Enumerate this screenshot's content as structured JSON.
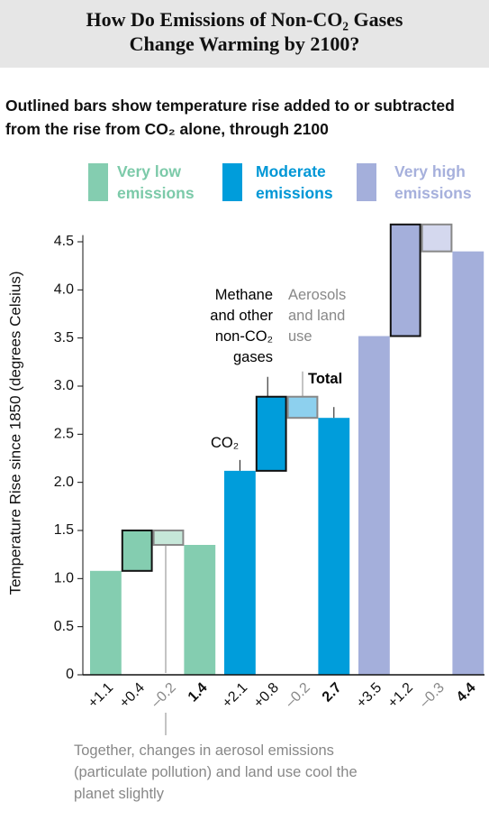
{
  "chart_data": {
    "type": "waterfall",
    "title": "How Do Emissions of Non-CO₂ Gases Change Warming by 2100?",
    "subtitle": "Outlined bars show temperature rise added to or subtracted from the rise from CO₂ alone, through 2100",
    "y_label": "Temperature Rise since 1850 (degrees Celsius)",
    "ylim": [
      0,
      4.7
    ],
    "yticks": [
      0,
      0.5,
      {
        "value": 1,
        "label": "1.0"
      },
      1.5,
      {
        "value": 2,
        "label": "2.0"
      },
      2.5,
      {
        "value": 3,
        "label": "3.0"
      },
      3.5,
      {
        "value": 4,
        "label": "4.0"
      },
      4.5
    ],
    "series": [
      {
        "name": "Very low emissions",
        "color": "#84cdb0",
        "light_color": "#c6e7d9",
        "text_color": "#7ccaa9",
        "values": [
          1.08,
          0.42,
          -0.15,
          1.35
        ],
        "value_labels": [
          "+1.1",
          "+0.4",
          "–0.2",
          "1.4"
        ]
      },
      {
        "name": "Moderate emissions",
        "color": "#009ddb",
        "light_color": "#8dd0ee",
        "text_color": "#0097d6",
        "values": [
          2.12,
          0.77,
          -0.22,
          2.67
        ],
        "value_labels": [
          "+2.1",
          "+0.8",
          "–0.2",
          "2.7"
        ]
      },
      {
        "name": "Very high emissions",
        "color": "#a4afdb",
        "light_color": "#d4d8ee",
        "text_color": "#a6b0dc",
        "values": [
          3.52,
          1.16,
          -0.28,
          4.4
        ],
        "value_labels": [
          "+3.5",
          "+1.2",
          "–0.3",
          "4.4"
        ]
      }
    ],
    "annotations": {
      "co2": "CO₂",
      "methane": "Methane and other non-CO₂ gases",
      "aerosols": "Aerosols and land use",
      "total": "Total",
      "note": "Together, changes in aerosol emissions (particulate pollution) and land use cool the planet slightly"
    }
  }
}
